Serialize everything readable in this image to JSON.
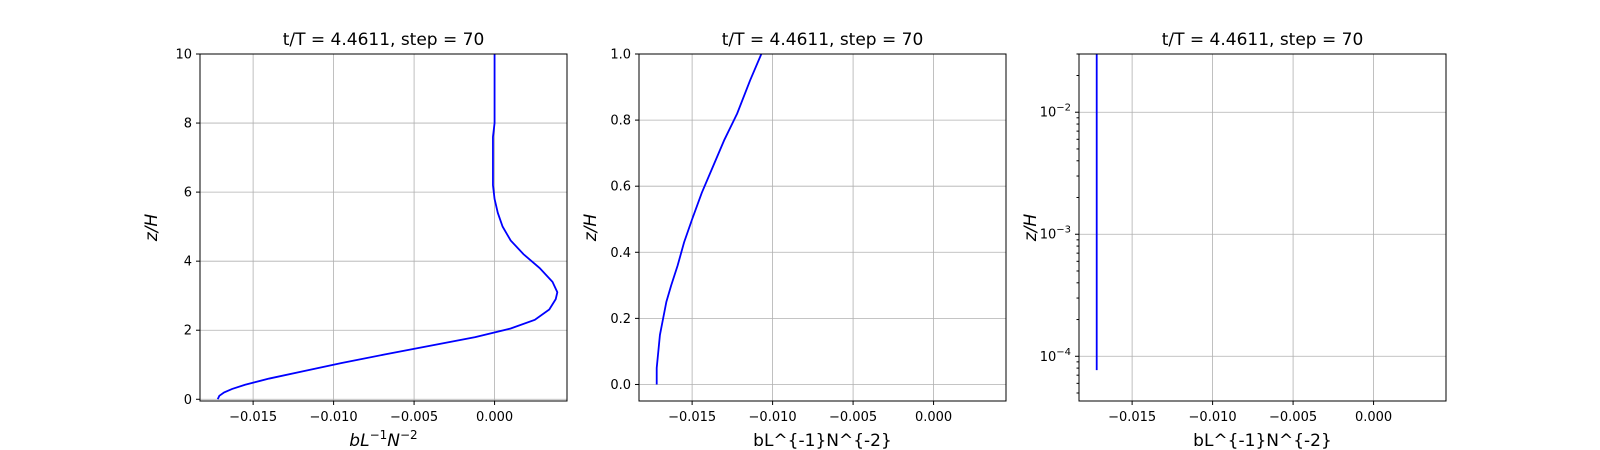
{
  "chart_data": [
    {
      "type": "line",
      "title": "t/T = 4.4611, step = 70",
      "xlabel_parts": [
        {
          "text": "b",
          "italic": true
        },
        {
          "text": "L",
          "italic": true
        },
        {
          "text": "−1",
          "sup": true
        },
        {
          "text": "N",
          "italic": true
        },
        {
          "text": "−2",
          "sup": true
        }
      ],
      "ylabel": "z/H",
      "xlim": [
        -0.0183,
        0.0045
      ],
      "ylim": [
        -0.05,
        10
      ],
      "yscale": "linear",
      "grid": true,
      "xticks": [
        -0.015,
        -0.01,
        -0.005,
        0.0
      ],
      "xtick_labels": [
        "−0.015",
        "−0.010",
        "−0.005",
        "0.000"
      ],
      "yticks": [
        0,
        2,
        4,
        6,
        8,
        10
      ],
      "ytick_labels": [
        "0",
        "2",
        "4",
        "6",
        "8",
        "10"
      ],
      "series": [
        {
          "color": "#0000ff",
          "x": [
            -0.0172,
            -0.0171,
            -0.0168,
            -0.0163,
            -0.0155,
            -0.014,
            -0.012,
            -0.0095,
            -0.0068,
            -0.004,
            -0.0012,
            0.001,
            0.0025,
            0.0034,
            0.0038,
            0.0039,
            0.0036,
            0.0028,
            0.0018,
            0.001,
            0.0005,
            0.0002,
            0.0,
            -0.0001,
            -0.0001,
            -0.0001,
            -0.0001,
            -0.0001,
            0.0,
            0.0,
            0.0,
            0.0,
            0.0
          ],
          "y": [
            0.0,
            0.1,
            0.2,
            0.3,
            0.42,
            0.6,
            0.8,
            1.05,
            1.3,
            1.55,
            1.8,
            2.05,
            2.3,
            2.6,
            2.9,
            3.1,
            3.4,
            3.8,
            4.2,
            4.6,
            5.0,
            5.4,
            5.8,
            6.2,
            6.5,
            6.8,
            7.2,
            7.6,
            8.0,
            8.5,
            9.0,
            9.5,
            10.0
          ]
        }
      ]
    },
    {
      "type": "line",
      "title": "t/T = 4.4611, step = 70",
      "xlabel": "bL^{-1}N^{-2}",
      "ylabel": "z/H",
      "xlim": [
        -0.0183,
        0.0045
      ],
      "ylim": [
        -0.05,
        1.0
      ],
      "yscale": "linear",
      "grid": true,
      "xticks": [
        -0.015,
        -0.01,
        -0.005,
        0.0
      ],
      "xtick_labels": [
        "−0.015",
        "−0.010",
        "−0.005",
        "0.000"
      ],
      "yticks": [
        0,
        0.2,
        0.4,
        0.6,
        0.8,
        1.0
      ],
      "ytick_labels": [
        "0.0",
        "0.2",
        "0.4",
        "0.6",
        "0.8",
        "1.0"
      ],
      "series": [
        {
          "color": "#0000ff",
          "x": [
            -0.0172,
            -0.0172,
            -0.0171,
            -0.017,
            -0.0168,
            -0.0166,
            -0.0163,
            -0.0159,
            -0.0155,
            -0.015,
            -0.0144,
            -0.0137,
            -0.013,
            -0.0122,
            -0.0114,
            -0.0107
          ],
          "y": [
            0.0,
            0.05,
            0.1,
            0.15,
            0.2,
            0.25,
            0.3,
            0.36,
            0.43,
            0.5,
            0.58,
            0.66,
            0.74,
            0.82,
            0.92,
            1.0
          ]
        }
      ]
    },
    {
      "type": "line",
      "title": "t/T = 4.4611, step = 70",
      "xlabel": "bL^{-1}N^{-2}",
      "ylabel": "z/H",
      "xlim": [
        -0.0183,
        0.0045
      ],
      "ylim": [
        4.3e-05,
        0.03
      ],
      "yscale": "log",
      "grid": true,
      "xticks": [
        -0.015,
        -0.01,
        -0.005,
        0.0
      ],
      "xtick_labels": [
        "−0.015",
        "−0.010",
        "−0.005",
        "0.000"
      ],
      "yticks": [
        0.0001,
        0.001,
        0.01
      ],
      "ytick_labels": [
        {
          "base": "10",
          "exp": "−4"
        },
        {
          "base": "10",
          "exp": "−3"
        },
        {
          "base": "10",
          "exp": "−2"
        }
      ],
      "series": [
        {
          "color": "#0000ff",
          "x": [
            -0.0172,
            -0.0172
          ],
          "y": [
            7.7e-05,
            0.03
          ]
        }
      ]
    }
  ]
}
